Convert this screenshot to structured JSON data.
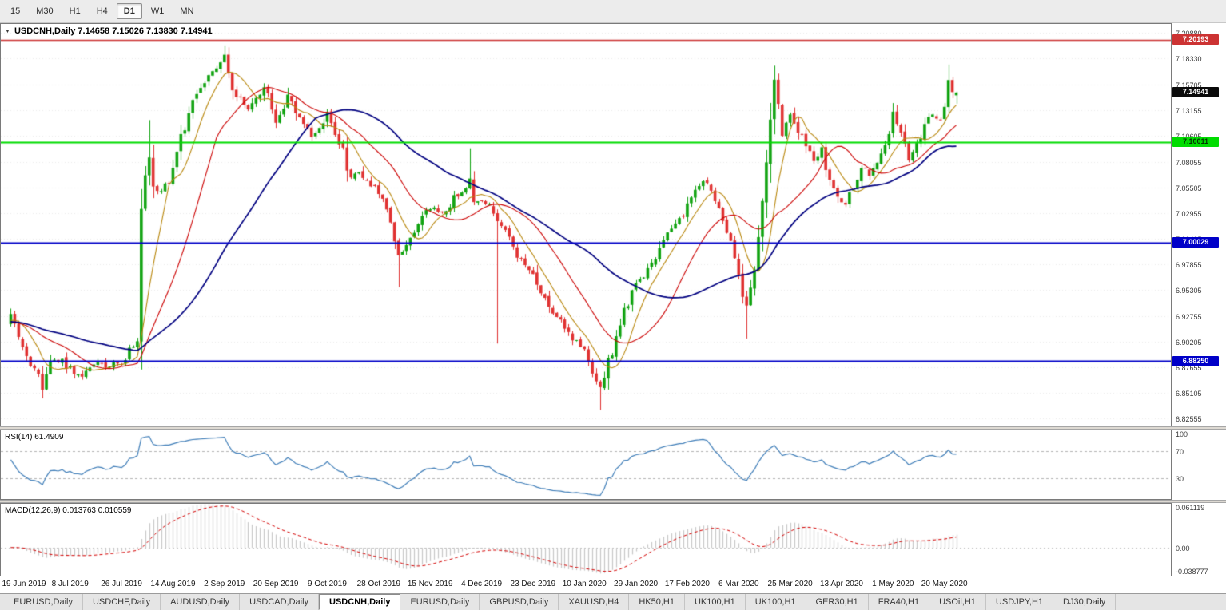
{
  "toolbar": {
    "timeframes": [
      {
        "label": "15",
        "active": false
      },
      {
        "label": "M30",
        "active": false
      },
      {
        "label": "H1",
        "active": false
      },
      {
        "label": "H4",
        "active": false
      },
      {
        "label": "D1",
        "active": true
      },
      {
        "label": "W1",
        "active": false
      },
      {
        "label": "MN",
        "active": false
      }
    ]
  },
  "main_chart": {
    "title": "USDCNH,Daily 7.14658 7.15026 7.13830 7.14941"
  },
  "indicators": {
    "rsi": {
      "label": "RSI(14) 61.4909",
      "period": 14,
      "value": 61.4909,
      "color": "#3e7db8",
      "levels": [
        70,
        30
      ],
      "scale_labels": [
        {
          "text": "100",
          "value": 100
        },
        {
          "text": "70",
          "value": 70
        },
        {
          "text": "30",
          "value": 30
        }
      ],
      "range": [
        0,
        100
      ]
    },
    "macd": {
      "label": "MACD(12,26,9) 0.013763 0.010559",
      "fast": 12,
      "slow": 26,
      "signal_period": 9,
      "main_value": 0.013763,
      "signal_value": 0.010559,
      "histogram_color": "#c6c6c6",
      "signal_color": "#d40000",
      "scale_labels": [
        {
          "text": "0.061119",
          "value": 0.061119
        },
        {
          "text": "0.00",
          "value": 0
        },
        {
          "text": "-0.038777",
          "value": -0.038777
        }
      ],
      "range": [
        -0.038777,
        0.061119
      ]
    }
  },
  "chart_data": {
    "type": "candlestick",
    "symbol": "USDCNH",
    "timeframe": "Daily",
    "last_bar_ohlc": {
      "open": 7.14658,
      "high": 7.15026,
      "low": 7.1383,
      "close": 7.14941
    },
    "current_price": {
      "price": 7.14941,
      "label": "7.14941",
      "tag_bg": "#0a0a0a",
      "tag_text": "#ffffff"
    },
    "price_range": [
      6.8185,
      7.2175
    ],
    "y_axis_ticks": [
      "7.20880",
      "7.18330",
      "7.15705",
      "7.13155",
      "7.10605",
      "7.08055",
      "7.05505",
      "7.02955",
      "7.00405",
      "6.97855",
      "6.95305",
      "6.92755",
      "6.90205",
      "6.87655",
      "6.85105",
      "6.82555"
    ],
    "x_axis_labels": [
      "19 Jun 2019",
      "8 Jul 2019",
      "26 Jul 2019",
      "14 Aug 2019",
      "2 Sep 2019",
      "20 Sep 2019",
      "9 Oct 2019",
      "28 Oct 2019",
      "15 Nov 2019",
      "4 Dec 2019",
      "23 Dec 2019",
      "10 Jan 2020",
      "29 Jan 2020",
      "17 Feb 2020",
      "6 Mar 2020",
      "25 Mar 2020",
      "13 Apr 2020",
      "1 May 2020",
      "20 May 2020"
    ],
    "horizontal_levels": [
      {
        "price": 7.20193,
        "label": "7.20193",
        "line_color": "#cc3333",
        "tag_bg": "#cc3333",
        "tag_text": "#ffffff",
        "width": 1.4
      },
      {
        "price": 7.10011,
        "label": "7.10011",
        "line_color": "#00dc00",
        "tag_bg": "#00dc00",
        "tag_text": "#003300",
        "width": 2
      },
      {
        "price": 7.00029,
        "label": "7.00029",
        "line_color": "#0000c8",
        "tag_bg": "#0000c8",
        "tag_text": "#ffffff",
        "width": 2
      },
      {
        "price": 6.8825,
        "label": "6.88250",
        "line_color": "#0000c8",
        "tag_bg": "#0000c8",
        "tag_text": "#ffffff",
        "width": 2
      }
    ],
    "moving_averages": [
      {
        "period": 8,
        "color": "#b8860b",
        "width": 1.1
      },
      {
        "period": 20,
        "color": "#cc0000",
        "width": 1.1
      },
      {
        "period": 45,
        "color": "#000080",
        "width": 1.7
      }
    ],
    "colors": {
      "up": "#10a310",
      "down": "#e03232",
      "grid": "#ebebeb",
      "background": "#ffffff"
    },
    "bars_visible": 240,
    "pre_history": {
      "bars": 60,
      "price": 6.922
    },
    "seed": 20200529,
    "path_anchors": [
      [
        0,
        6.93
      ],
      [
        3,
        6.896
      ],
      [
        6,
        6.872
      ],
      [
        8,
        6.86
      ],
      [
        10,
        6.884
      ],
      [
        13,
        6.88
      ],
      [
        16,
        6.872
      ],
      [
        18,
        6.866
      ],
      [
        21,
        6.88
      ],
      [
        24,
        6.877
      ],
      [
        28,
        6.882
      ],
      [
        31,
        6.897
      ],
      [
        32,
        6.905
      ],
      [
        33,
        7.038
      ],
      [
        34,
        7.062
      ],
      [
        35,
        7.085
      ],
      [
        36,
        7.058
      ],
      [
        38,
        7.048
      ],
      [
        40,
        7.062
      ],
      [
        42,
        7.09
      ],
      [
        44,
        7.115
      ],
      [
        46,
        7.14
      ],
      [
        48,
        7.155
      ],
      [
        50,
        7.168
      ],
      [
        52,
        7.175
      ],
      [
        54,
        7.186
      ],
      [
        55,
        7.17
      ],
      [
        56,
        7.152
      ],
      [
        58,
        7.143
      ],
      [
        60,
        7.132
      ],
      [
        62,
        7.14
      ],
      [
        64,
        7.154
      ],
      [
        66,
        7.135
      ],
      [
        67,
        7.118
      ],
      [
        69,
        7.132
      ],
      [
        70,
        7.148
      ],
      [
        72,
        7.13
      ],
      [
        74,
        7.118
      ],
      [
        76,
        7.106
      ],
      [
        78,
        7.115
      ],
      [
        80,
        7.126
      ],
      [
        82,
        7.108
      ],
      [
        84,
        7.094
      ],
      [
        86,
        7.066
      ],
      [
        88,
        7.072
      ],
      [
        90,
        7.06
      ],
      [
        92,
        7.058
      ],
      [
        94,
        7.042
      ],
      [
        96,
        7.02
      ],
      [
        98,
        6.986
      ],
      [
        100,
        6.996
      ],
      [
        102,
        7.012
      ],
      [
        104,
        7.026
      ],
      [
        106,
        7.034
      ],
      [
        108,
        7.03
      ],
      [
        110,
        7.032
      ],
      [
        112,
        7.044
      ],
      [
        114,
        7.052
      ],
      [
        116,
        7.062
      ],
      [
        117,
        7.042
      ],
      [
        119,
        7.04
      ],
      [
        121,
        7.036
      ],
      [
        123,
        7.022
      ],
      [
        125,
        7.01
      ],
      [
        127,
        6.996
      ],
      [
        129,
        6.984
      ],
      [
        131,
        6.972
      ],
      [
        133,
        6.96
      ],
      [
        135,
        6.946
      ],
      [
        137,
        6.932
      ],
      [
        139,
        6.922
      ],
      [
        141,
        6.91
      ],
      [
        143,
        6.902
      ],
      [
        145,
        6.893
      ],
      [
        147,
        6.872
      ],
      [
        149,
        6.856
      ],
      [
        151,
        6.878
      ],
      [
        153,
        6.906
      ],
      [
        155,
        6.932
      ],
      [
        158,
        6.958
      ],
      [
        160,
        6.97
      ],
      [
        162,
        6.982
      ],
      [
        164,
        6.995
      ],
      [
        166,
        7.008
      ],
      [
        168,
        7.02
      ],
      [
        170,
        7.028
      ],
      [
        172,
        7.044
      ],
      [
        174,
        7.056
      ],
      [
        176,
        7.062
      ],
      [
        178,
        7.042
      ],
      [
        180,
        7.024
      ],
      [
        182,
        7.0
      ],
      [
        184,
        6.966
      ],
      [
        186,
        6.934
      ],
      [
        188,
        6.972
      ],
      [
        190,
        7.04
      ],
      [
        192,
        7.118
      ],
      [
        193,
        7.158
      ],
      [
        195,
        7.108
      ],
      [
        197,
        7.126
      ],
      [
        199,
        7.112
      ],
      [
        201,
        7.096
      ],
      [
        203,
        7.082
      ],
      [
        205,
        7.092
      ],
      [
        207,
        7.062
      ],
      [
        209,
        7.048
      ],
      [
        211,
        7.036
      ],
      [
        213,
        7.058
      ],
      [
        215,
        7.076
      ],
      [
        217,
        7.066
      ],
      [
        219,
        7.084
      ],
      [
        221,
        7.096
      ],
      [
        223,
        7.128
      ],
      [
        225,
        7.11
      ],
      [
        227,
        7.086
      ],
      [
        229,
        7.096
      ],
      [
        231,
        7.114
      ],
      [
        233,
        7.128
      ],
      [
        235,
        7.124
      ],
      [
        237,
        7.158
      ],
      [
        238,
        7.15
      ],
      [
        239,
        7.14941
      ]
    ],
    "forced_extremes": [
      {
        "bar": 8,
        "low": 6.8455
      },
      {
        "bar": 33,
        "low": 6.906
      },
      {
        "bar": 35,
        "high": 7.122
      },
      {
        "bar": 54,
        "high": 7.1962
      },
      {
        "bar": 98,
        "low": 6.956
      },
      {
        "bar": 116,
        "high": 7.094
      },
      {
        "bar": 123,
        "low": 6.9
      },
      {
        "bar": 149,
        "low": 6.834
      },
      {
        "bar": 186,
        "low": 6.905
      },
      {
        "bar": 193,
        "high": 7.176
      },
      {
        "bar": 237,
        "high": 7.1772
      }
    ]
  },
  "tabs": [
    {
      "label": "EURUSD,Daily",
      "active": false
    },
    {
      "label": "USDCHF,Daily",
      "active": false
    },
    {
      "label": "AUDUSD,Daily",
      "active": false
    },
    {
      "label": "USDCAD,Daily",
      "active": false
    },
    {
      "label": "USDCNH,Daily",
      "active": true
    },
    {
      "label": "EURUSD,Daily",
      "active": false
    },
    {
      "label": "GBPUSD,Daily",
      "active": false
    },
    {
      "label": "XAUUSD,H4",
      "active": false
    },
    {
      "label": "HK50,H1",
      "active": false
    },
    {
      "label": "UK100,H1",
      "active": false
    },
    {
      "label": "UK100,H1",
      "active": false
    },
    {
      "label": "GER30,H1",
      "active": false
    },
    {
      "label": "FRA40,H1",
      "active": false
    },
    {
      "label": "USOil,H1",
      "active": false
    },
    {
      "label": "USDJPY,H1",
      "active": false
    },
    {
      "label": "DJ30,Daily",
      "active": false
    }
  ]
}
